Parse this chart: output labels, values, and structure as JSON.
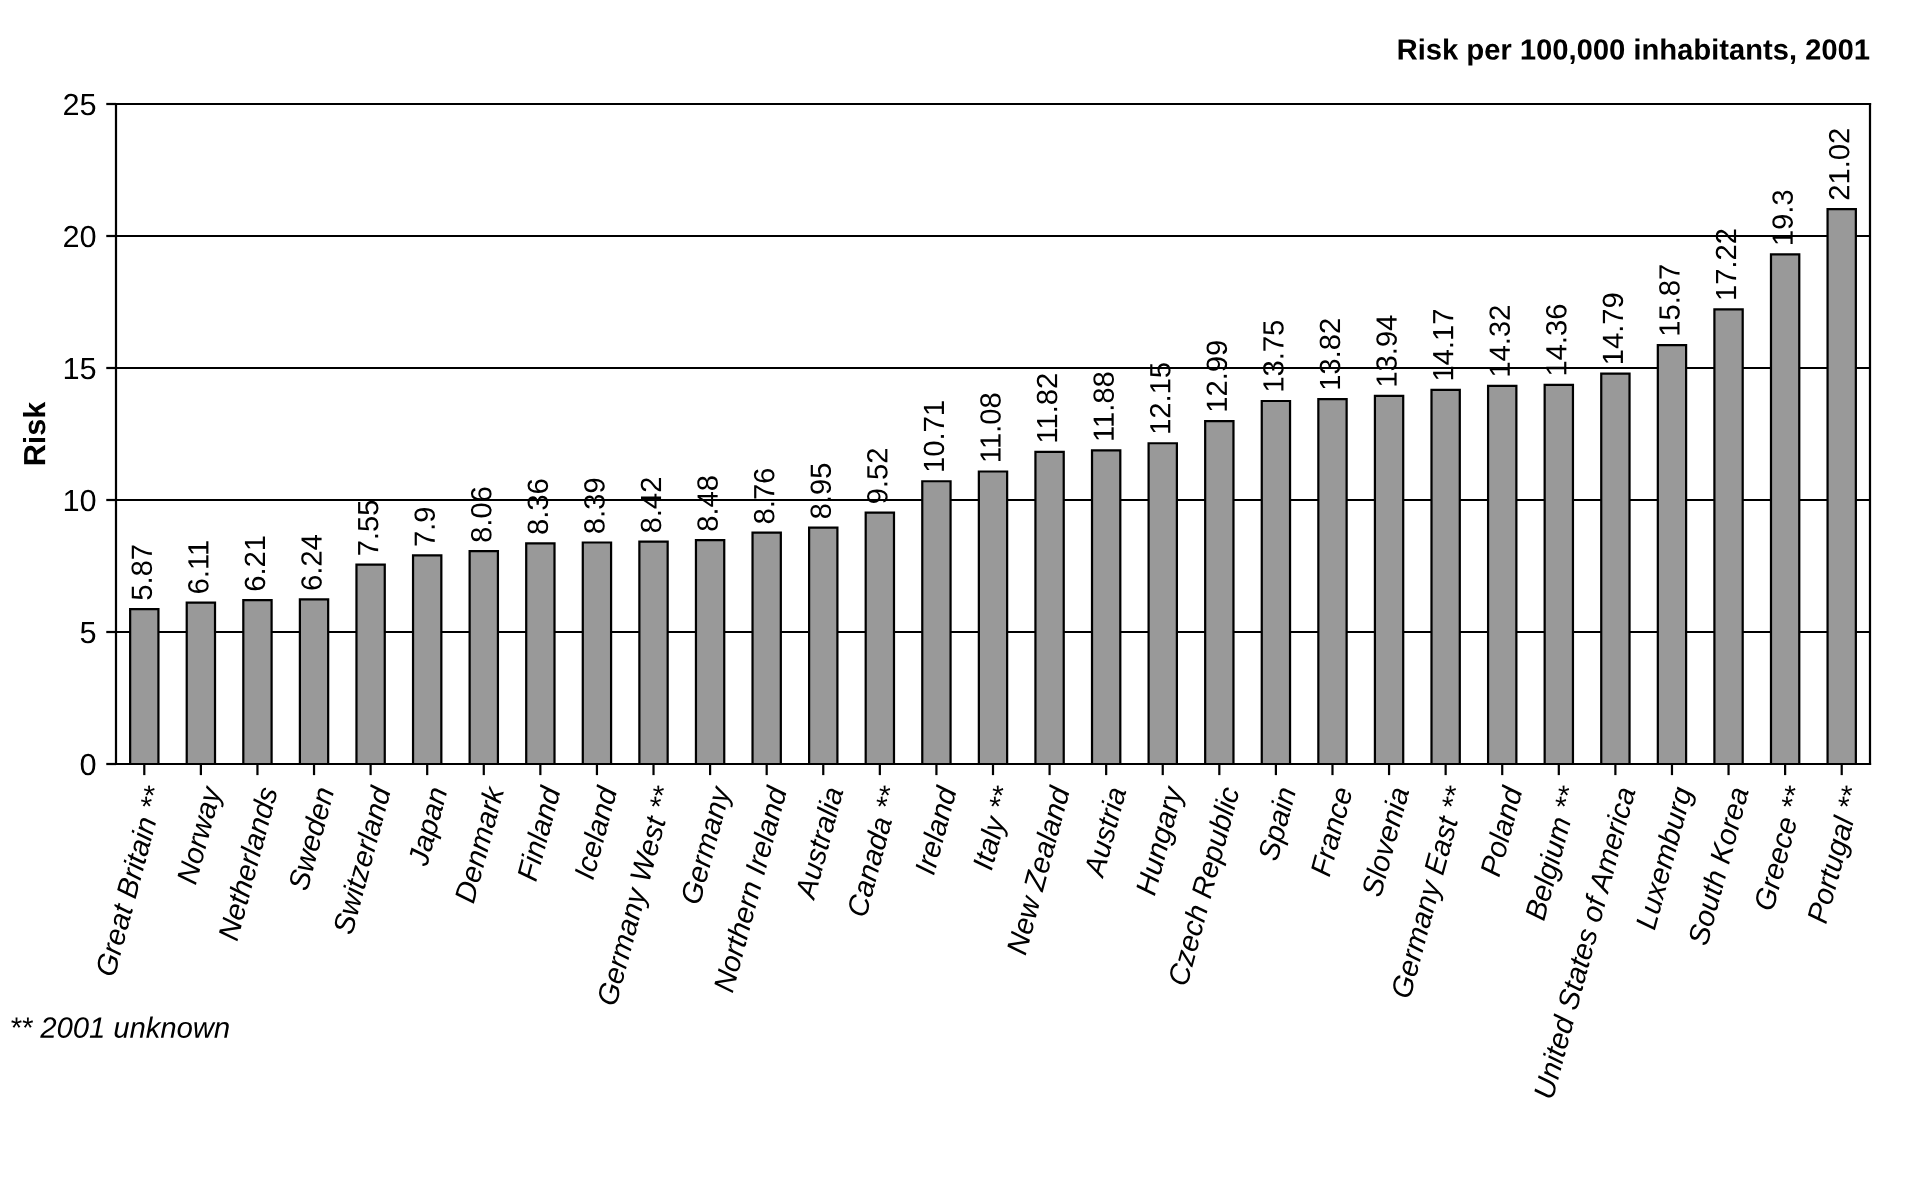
{
  "chart_data": {
    "type": "bar",
    "title": "Risk per 100,000 inhabitants, 2001",
    "ylabel": "Risk",
    "categories": [
      "Great Britain **",
      "Norway",
      "Netherlands",
      "Sweden",
      "Switzerland",
      "Japan",
      "Denmark",
      "Finland",
      "Iceland",
      "Germany West **",
      "Germany",
      "Northern Ireland",
      "Australia",
      "Canada **",
      "Ireland",
      "Italy **",
      "New Zealand",
      "Austria",
      "Hungary",
      "Czech Republic",
      "Spain",
      "France",
      "Slovenia",
      "Germany East **",
      "Poland",
      "Belgium **",
      "United States of America",
      "Luxemburg",
      "South Korea",
      "Greece **",
      "Portugal **"
    ],
    "values": [
      5.87,
      6.11,
      6.21,
      6.24,
      7.55,
      7.9,
      8.06,
      8.36,
      8.39,
      8.42,
      8.48,
      8.76,
      8.95,
      9.52,
      10.71,
      11.08,
      11.82,
      11.88,
      12.15,
      12.99,
      13.75,
      13.82,
      13.94,
      14.17,
      14.32,
      14.36,
      14.79,
      15.87,
      17.22,
      19.3,
      21.02
    ],
    "color": "#999999",
    "ylim": [
      0,
      25
    ],
    "yticks": [
      0,
      5,
      10,
      15,
      20,
      25
    ],
    "grid": "y",
    "data_labels": true,
    "annotations": [
      "** 2001 unknown"
    ]
  }
}
